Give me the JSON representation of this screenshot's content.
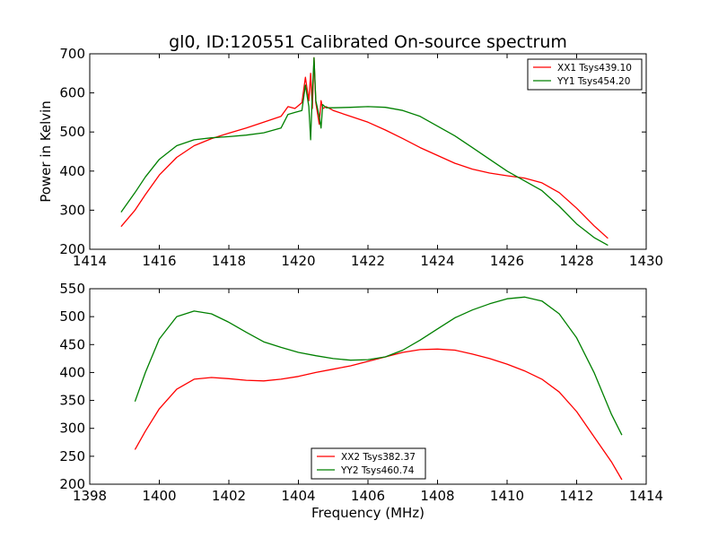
{
  "figure": {
    "title": "gl0, ID:120551 Calibrated On-source spectrum"
  },
  "chart_data": [
    {
      "type": "line",
      "title": "gl0, ID:120551 Calibrated On-source spectrum",
      "xlabel": "",
      "ylabel": "Power in Kelvin",
      "xlim": [
        1414,
        1430
      ],
      "ylim": [
        200,
        700
      ],
      "xticks": [
        1414,
        1416,
        1418,
        1420,
        1422,
        1424,
        1426,
        1428,
        1430
      ],
      "yticks": [
        200,
        300,
        400,
        500,
        600,
        700
      ],
      "grid": false,
      "legend_position": "top-right",
      "series": [
        {
          "name": "XX1 Tsys439.10",
          "color": "#ff0000",
          "x": [
            1414.9,
            1415.3,
            1415.6,
            1416.0,
            1416.5,
            1417.0,
            1417.5,
            1418.0,
            1418.5,
            1419.0,
            1419.5,
            1419.7,
            1419.9,
            1420.1,
            1420.2,
            1420.3,
            1420.35,
            1420.4,
            1420.45,
            1420.5,
            1420.6,
            1420.65,
            1420.7,
            1420.8,
            1421.0,
            1421.5,
            1422.0,
            1422.5,
            1423.0,
            1423.5,
            1424.0,
            1424.5,
            1425.0,
            1425.5,
            1426.0,
            1426.5,
            1427.0,
            1427.5,
            1428.0,
            1428.5,
            1428.9
          ],
          "values": [
            258,
            300,
            340,
            390,
            435,
            465,
            483,
            497,
            510,
            525,
            540,
            565,
            560,
            575,
            640,
            580,
            650,
            560,
            690,
            575,
            520,
            580,
            560,
            565,
            555,
            540,
            525,
            505,
            483,
            460,
            440,
            420,
            405,
            395,
            388,
            382,
            370,
            345,
            305,
            260,
            228
          ]
        },
        {
          "name": "YY1 Tsys454.20",
          "color": "#008000",
          "x": [
            1414.9,
            1415.3,
            1415.6,
            1416.0,
            1416.5,
            1417.0,
            1417.5,
            1418.0,
            1418.5,
            1419.0,
            1419.5,
            1419.7,
            1419.9,
            1420.1,
            1420.2,
            1420.3,
            1420.35,
            1420.4,
            1420.45,
            1420.5,
            1420.6,
            1420.65,
            1420.7,
            1420.8,
            1421.0,
            1421.5,
            1422.0,
            1422.5,
            1423.0,
            1423.5,
            1424.0,
            1424.5,
            1425.0,
            1425.5,
            1426.0,
            1426.5,
            1427.0,
            1427.5,
            1428.0,
            1428.5,
            1428.9
          ],
          "values": [
            295,
            345,
            385,
            430,
            465,
            480,
            485,
            488,
            492,
            498,
            510,
            545,
            550,
            555,
            620,
            565,
            480,
            600,
            690,
            580,
            540,
            510,
            570,
            562,
            562,
            563,
            565,
            563,
            555,
            540,
            515,
            490,
            460,
            430,
            400,
            375,
            350,
            310,
            265,
            230,
            210
          ]
        }
      ]
    },
    {
      "type": "line",
      "title": "",
      "xlabel": "Frequency (MHz)",
      "ylabel": "",
      "xlim": [
        1398,
        1414
      ],
      "ylim": [
        200,
        550
      ],
      "xticks": [
        1398,
        1400,
        1402,
        1404,
        1406,
        1408,
        1410,
        1412,
        1414
      ],
      "yticks": [
        200,
        250,
        300,
        350,
        400,
        450,
        500,
        550
      ],
      "grid": false,
      "legend_position": "bottom-center",
      "series": [
        {
          "name": "XX2 Tsys382.37",
          "color": "#ff0000",
          "x": [
            1399.3,
            1399.6,
            1400.0,
            1400.5,
            1401.0,
            1401.5,
            1402.0,
            1402.5,
            1403.0,
            1403.5,
            1404.0,
            1404.5,
            1405.0,
            1405.5,
            1406.0,
            1406.5,
            1407.0,
            1407.5,
            1408.0,
            1408.5,
            1409.0,
            1409.5,
            1410.0,
            1410.5,
            1411.0,
            1411.5,
            1412.0,
            1412.5,
            1413.0,
            1413.3
          ],
          "values": [
            262,
            295,
            335,
            370,
            388,
            391,
            389,
            386,
            385,
            388,
            393,
            400,
            406,
            412,
            420,
            428,
            436,
            441,
            442,
            440,
            433,
            425,
            415,
            403,
            388,
            365,
            330,
            285,
            240,
            208
          ]
        },
        {
          "name": "YY2 Tsys460.74",
          "color": "#008000",
          "x": [
            1399.3,
            1399.6,
            1400.0,
            1400.5,
            1401.0,
            1401.5,
            1402.0,
            1402.5,
            1403.0,
            1403.5,
            1404.0,
            1404.5,
            1405.0,
            1405.5,
            1406.0,
            1406.5,
            1407.0,
            1407.5,
            1408.0,
            1408.5,
            1409.0,
            1409.5,
            1410.0,
            1410.5,
            1411.0,
            1411.5,
            1412.0,
            1412.5,
            1413.0,
            1413.3
          ],
          "values": [
            348,
            400,
            460,
            500,
            510,
            505,
            490,
            472,
            455,
            445,
            436,
            430,
            425,
            422,
            423,
            428,
            440,
            458,
            478,
            498,
            512,
            523,
            532,
            535,
            528,
            505,
            462,
            400,
            325,
            288
          ]
        }
      ]
    }
  ]
}
